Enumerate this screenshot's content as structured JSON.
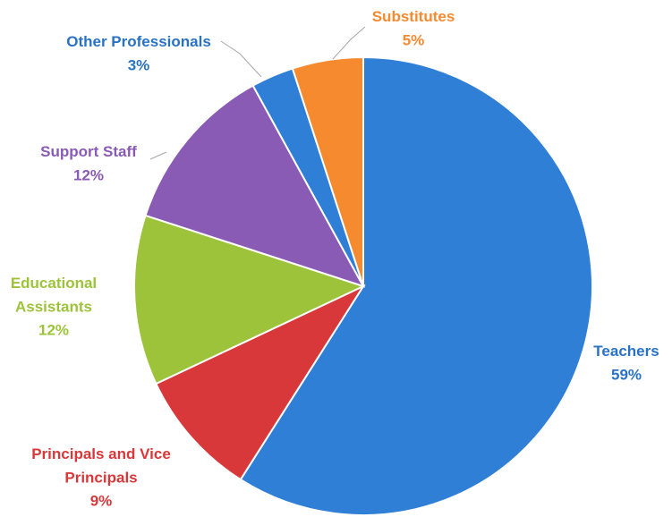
{
  "chart_data": {
    "type": "pie",
    "title": "",
    "start_at": "top",
    "direction": "clockwise",
    "slices": [
      {
        "label_lines": [
          "Teachers"
        ],
        "value": 59,
        "value_label": "59%",
        "color": "#2f7fd6"
      },
      {
        "label_lines": [
          "Principals and Vice",
          "Principals"
        ],
        "value": 9,
        "value_label": "9%",
        "color": "#d9383a"
      },
      {
        "label_lines": [
          "Educational",
          "Assistants"
        ],
        "value": 12,
        "value_label": "12%",
        "color": "#9dc33b"
      },
      {
        "label_lines": [
          "Support Staff"
        ],
        "value": 12,
        "value_label": "12%",
        "color": "#8a5bb4"
      },
      {
        "label_lines": [
          "Other Professionals"
        ],
        "value": 3,
        "value_label": "3%",
        "color": "#2f7fd6"
      },
      {
        "label_lines": [
          "Substitutes"
        ],
        "value": 5,
        "value_label": "5%",
        "color": "#f58a2f"
      }
    ],
    "label_colors": {
      "Teachers": "#2a72c4",
      "Principals and Vice Principals": "#d9383a",
      "Educational Assistants": "#9dc33b",
      "Support Staff": "#8a5bb4",
      "Other Professionals": "#2a72c4",
      "Substitutes": "#f58a2f"
    }
  }
}
